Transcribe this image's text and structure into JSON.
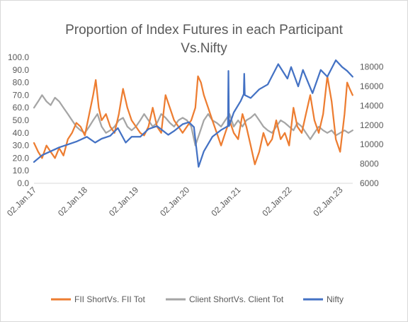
{
  "chart_data": {
    "type": "line",
    "title": [
      "Proportion of Index Futures in each Participant",
      "Vs.Nifty"
    ],
    "x_tick_labels": [
      "02.Jan.17",
      "02.Jan.18",
      "02.Jan.19",
      "02.Jan.20",
      "02.Jan.21",
      "02.Jan.22",
      "02.Jan.23"
    ],
    "x_range": [
      "2017-01-02",
      "2023-04-01"
    ],
    "y_left": {
      "range": [
        0,
        100
      ],
      "tick_labels": [
        "0.0",
        "10.0",
        "20.0",
        "30.0",
        "40.0",
        "50.0",
        "60.0",
        "70.0",
        "80.0",
        "90.0",
        "100.0"
      ]
    },
    "y_right": {
      "range": [
        6000,
        19000
      ],
      "tick_labels": [
        "6000",
        "8000",
        "10000",
        "12000",
        "14000",
        "16000",
        "18000"
      ]
    },
    "gridlines": false,
    "legend_position": "bottom",
    "series": [
      {
        "name": "FII ShortVs. FII Tot",
        "axis": "left",
        "color": "#ed7d31",
        "points": [
          [
            "2017-01-02",
            32
          ],
          [
            "2017-02-01",
            25
          ],
          [
            "2017-03-01",
            20
          ],
          [
            "2017-04-01",
            30
          ],
          [
            "2017-05-01",
            25
          ],
          [
            "2017-06-01",
            20
          ],
          [
            "2017-07-01",
            28
          ],
          [
            "2017-08-01",
            22
          ],
          [
            "2017-09-01",
            35
          ],
          [
            "2017-10-01",
            40
          ],
          [
            "2017-11-01",
            48
          ],
          [
            "2017-12-01",
            45
          ],
          [
            "2018-01-01",
            38
          ],
          [
            "2018-02-01",
            55
          ],
          [
            "2018-03-01",
            70
          ],
          [
            "2018-03-20",
            82
          ],
          [
            "2018-04-10",
            60
          ],
          [
            "2018-05-01",
            50
          ],
          [
            "2018-06-01",
            55
          ],
          [
            "2018-07-01",
            45
          ],
          [
            "2018-08-01",
            40
          ],
          [
            "2018-09-01",
            55
          ],
          [
            "2018-10-01",
            75
          ],
          [
            "2018-11-01",
            60
          ],
          [
            "2018-12-01",
            50
          ],
          [
            "2019-01-01",
            45
          ],
          [
            "2019-02-01",
            40
          ],
          [
            "2019-03-01",
            38
          ],
          [
            "2019-04-01",
            45
          ],
          [
            "2019-05-01",
            60
          ],
          [
            "2019-06-01",
            45
          ],
          [
            "2019-07-01",
            40
          ],
          [
            "2019-08-01",
            70
          ],
          [
            "2019-09-01",
            60
          ],
          [
            "2019-10-01",
            50
          ],
          [
            "2019-11-01",
            45
          ],
          [
            "2019-12-01",
            40
          ],
          [
            "2020-01-01",
            45
          ],
          [
            "2020-02-01",
            50
          ],
          [
            "2020-03-01",
            60
          ],
          [
            "2020-03-20",
            85
          ],
          [
            "2020-04-10",
            80
          ],
          [
            "2020-05-01",
            70
          ],
          [
            "2020-06-01",
            60
          ],
          [
            "2020-07-01",
            50
          ],
          [
            "2020-08-01",
            40
          ],
          [
            "2020-09-01",
            30
          ],
          [
            "2020-10-01",
            40
          ],
          [
            "2020-11-01",
            50
          ],
          [
            "2020-12-01",
            40
          ],
          [
            "2021-01-01",
            35
          ],
          [
            "2021-02-01",
            55
          ],
          [
            "2021-03-01",
            45
          ],
          [
            "2021-04-01",
            30
          ],
          [
            "2021-05-01",
            15
          ],
          [
            "2021-06-01",
            25
          ],
          [
            "2021-07-01",
            40
          ],
          [
            "2021-08-01",
            30
          ],
          [
            "2021-09-01",
            35
          ],
          [
            "2021-10-01",
            50
          ],
          [
            "2021-11-01",
            35
          ],
          [
            "2021-12-01",
            40
          ],
          [
            "2022-01-01",
            30
          ],
          [
            "2022-02-01",
            60
          ],
          [
            "2022-03-01",
            45
          ],
          [
            "2022-04-01",
            40
          ],
          [
            "2022-05-01",
            55
          ],
          [
            "2022-06-01",
            70
          ],
          [
            "2022-07-01",
            50
          ],
          [
            "2022-08-01",
            40
          ],
          [
            "2022-09-01",
            55
          ],
          [
            "2022-10-01",
            85
          ],
          [
            "2022-11-01",
            65
          ],
          [
            "2022-12-01",
            35
          ],
          [
            "2023-01-01",
            25
          ],
          [
            "2023-02-01",
            55
          ],
          [
            "2023-02-20",
            80
          ],
          [
            "2023-03-10",
            75
          ],
          [
            "2023-03-31",
            70
          ]
        ]
      },
      {
        "name": "Client ShortVs. Client Tot",
        "axis": "left",
        "color": "#a5a5a5",
        "points": [
          [
            "2017-01-02",
            60
          ],
          [
            "2017-02-01",
            65
          ],
          [
            "2017-03-01",
            70
          ],
          [
            "2017-04-01",
            65
          ],
          [
            "2017-05-01",
            62
          ],
          [
            "2017-06-01",
            68
          ],
          [
            "2017-07-01",
            65
          ],
          [
            "2017-08-01",
            60
          ],
          [
            "2017-09-01",
            55
          ],
          [
            "2017-10-01",
            50
          ],
          [
            "2017-11-01",
            45
          ],
          [
            "2017-12-01",
            42
          ],
          [
            "2018-01-01",
            40
          ],
          [
            "2018-02-01",
            45
          ],
          [
            "2018-03-01",
            50
          ],
          [
            "2018-04-01",
            55
          ],
          [
            "2018-05-01",
            45
          ],
          [
            "2018-06-01",
            40
          ],
          [
            "2018-07-01",
            42
          ],
          [
            "2018-08-01",
            45
          ],
          [
            "2018-09-01",
            50
          ],
          [
            "2018-10-01",
            52
          ],
          [
            "2018-11-01",
            45
          ],
          [
            "2018-12-01",
            42
          ],
          [
            "2019-01-01",
            45
          ],
          [
            "2019-02-01",
            50
          ],
          [
            "2019-03-01",
            55
          ],
          [
            "2019-04-01",
            50
          ],
          [
            "2019-05-01",
            45
          ],
          [
            "2019-06-01",
            48
          ],
          [
            "2019-07-01",
            55
          ],
          [
            "2019-08-01",
            52
          ],
          [
            "2019-09-01",
            48
          ],
          [
            "2019-10-01",
            45
          ],
          [
            "2019-11-01",
            50
          ],
          [
            "2019-12-01",
            52
          ],
          [
            "2020-01-01",
            50
          ],
          [
            "2020-02-01",
            45
          ],
          [
            "2020-03-01",
            30
          ],
          [
            "2020-04-01",
            40
          ],
          [
            "2020-05-01",
            50
          ],
          [
            "2020-06-01",
            55
          ],
          [
            "2020-07-01",
            50
          ],
          [
            "2020-08-01",
            48
          ],
          [
            "2020-09-01",
            45
          ],
          [
            "2020-10-01",
            50
          ],
          [
            "2020-11-01",
            55
          ],
          [
            "2020-12-01",
            45
          ],
          [
            "2021-01-01",
            50
          ],
          [
            "2021-02-01",
            45
          ],
          [
            "2021-03-01",
            50
          ],
          [
            "2021-04-01",
            52
          ],
          [
            "2021-05-01",
            55
          ],
          [
            "2021-06-01",
            50
          ],
          [
            "2021-07-01",
            45
          ],
          [
            "2021-08-01",
            42
          ],
          [
            "2021-09-01",
            40
          ],
          [
            "2021-10-01",
            45
          ],
          [
            "2021-11-01",
            50
          ],
          [
            "2021-12-01",
            48
          ],
          [
            "2022-01-01",
            45
          ],
          [
            "2022-02-01",
            42
          ],
          [
            "2022-03-01",
            48
          ],
          [
            "2022-04-01",
            45
          ],
          [
            "2022-05-01",
            40
          ],
          [
            "2022-06-01",
            35
          ],
          [
            "2022-07-01",
            40
          ],
          [
            "2022-08-01",
            45
          ],
          [
            "2022-09-01",
            42
          ],
          [
            "2022-10-01",
            40
          ],
          [
            "2022-11-01",
            42
          ],
          [
            "2022-12-01",
            38
          ],
          [
            "2023-01-01",
            40
          ],
          [
            "2023-02-01",
            42
          ],
          [
            "2023-03-01",
            40
          ],
          [
            "2023-03-31",
            42
          ]
        ]
      },
      {
        "name": "Nifty",
        "axis": "right",
        "color": "#4472c4",
        "points": [
          [
            "2017-01-02",
            8200
          ],
          [
            "2017-03-01",
            8900
          ],
          [
            "2017-05-01",
            9300
          ],
          [
            "2017-07-01",
            9700
          ],
          [
            "2017-09-01",
            10000
          ],
          [
            "2017-11-01",
            10300
          ],
          [
            "2018-01-15",
            10800
          ],
          [
            "2018-03-15",
            10200
          ],
          [
            "2018-05-01",
            10600
          ],
          [
            "2018-07-01",
            10900
          ],
          [
            "2018-08-25",
            11700
          ],
          [
            "2018-10-20",
            10200
          ],
          [
            "2018-12-01",
            10800
          ],
          [
            "2019-02-01",
            10800
          ],
          [
            "2019-04-01",
            11600
          ],
          [
            "2019-06-01",
            11900
          ],
          [
            "2019-08-20",
            11000
          ],
          [
            "2019-10-01",
            11400
          ],
          [
            "2019-12-01",
            12100
          ],
          [
            "2020-01-15",
            12300
          ],
          [
            "2020-02-20",
            11800
          ],
          [
            "2020-03-24",
            7700
          ],
          [
            "2020-05-01",
            9300
          ],
          [
            "2020-07-01",
            10800
          ],
          [
            "2020-09-01",
            11500
          ],
          [
            "2020-10-20",
            11900
          ],
          [
            "2020-10-24",
            17600
          ],
          [
            "2020-10-28",
            11900
          ],
          [
            "2020-12-01",
            13300
          ],
          [
            "2021-01-20",
            14500
          ],
          [
            "2021-02-10",
            15200
          ],
          [
            "2021-02-14",
            17300
          ],
          [
            "2021-02-18",
            15100
          ],
          [
            "2021-04-01",
            14800
          ],
          [
            "2021-06-01",
            15700
          ],
          [
            "2021-08-01",
            16200
          ],
          [
            "2021-10-15",
            18300
          ],
          [
            "2021-12-20",
            16800
          ],
          [
            "2022-01-15",
            18000
          ],
          [
            "2022-03-07",
            16000
          ],
          [
            "2022-04-10",
            17700
          ],
          [
            "2022-06-17",
            15300
          ],
          [
            "2022-08-15",
            17700
          ],
          [
            "2022-10-01",
            17000
          ],
          [
            "2022-12-01",
            18700
          ],
          [
            "2023-01-15",
            18000
          ],
          [
            "2023-02-20",
            17600
          ],
          [
            "2023-03-31",
            17000
          ]
        ]
      }
    ]
  }
}
